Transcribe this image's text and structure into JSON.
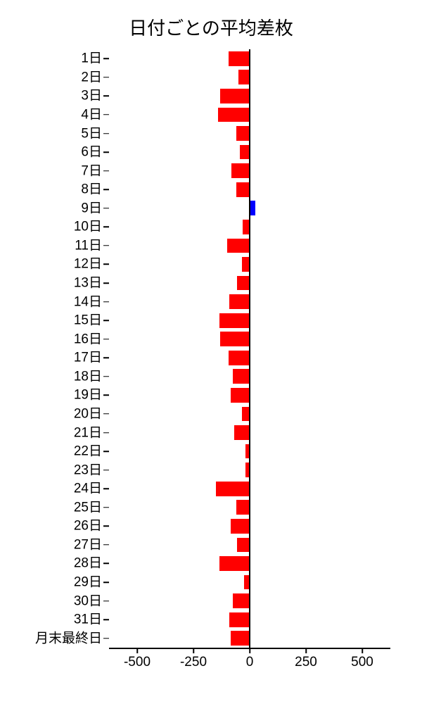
{
  "chart": {
    "type": "bar-horizontal",
    "title": "日付ごとの平均差枚",
    "title_fontsize": 26,
    "background_color": "#ffffff",
    "xlim": [
      -625,
      625
    ],
    "xticks": [
      -500,
      -250,
      0,
      250,
      500
    ],
    "xtick_labels": [
      "-500",
      "-250",
      "0",
      "250",
      "500"
    ],
    "zero_line_color": "#000000",
    "zero_line_width": 2,
    "axis_color": "#000000",
    "label_fontsize": 19,
    "tick_fontsize": 19,
    "bar_height_ratio": 0.78,
    "colors": {
      "negative": "#ff0000",
      "positive": "#0000ff"
    },
    "categories": [
      "1日",
      "2日",
      "3日",
      "4日",
      "5日",
      "6日",
      "7日",
      "8日",
      "9日",
      "10日",
      "11日",
      "12日",
      "13日",
      "14日",
      "15日",
      "16日",
      "17日",
      "18日",
      "19日",
      "20日",
      "21日",
      "22日",
      "23日",
      "24日",
      "25日",
      "26日",
      "27日",
      "28日",
      "29日",
      "30日",
      "31日",
      "月末最終日"
    ],
    "values": [
      -95,
      -50,
      -130,
      -140,
      -60,
      -45,
      -80,
      -60,
      25,
      -30,
      -100,
      -35,
      -55,
      -90,
      -135,
      -130,
      -95,
      -75,
      -85,
      -35,
      -70,
      -20,
      -20,
      -150,
      -60,
      -85,
      -55,
      -135,
      -25,
      -75,
      -90,
      -85
    ]
  }
}
